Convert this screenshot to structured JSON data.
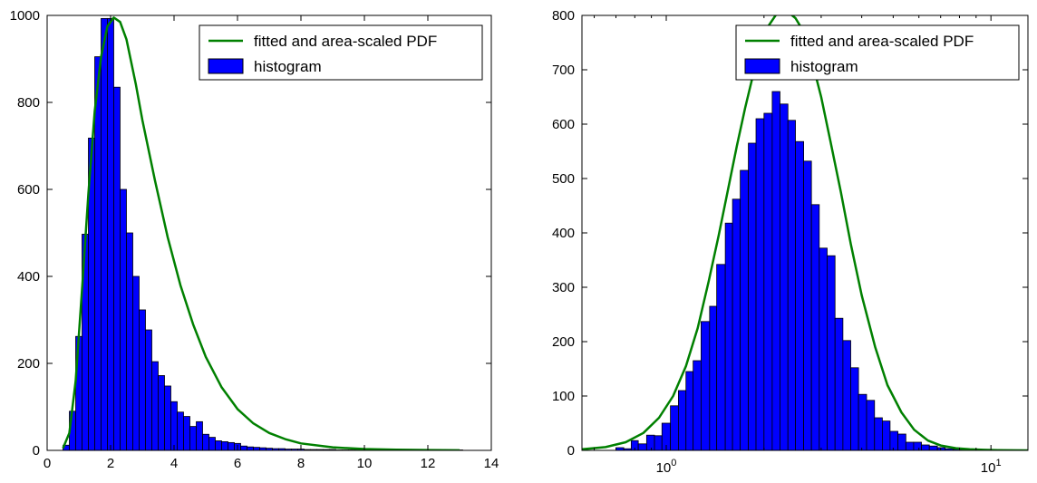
{
  "chart_data": [
    {
      "type": "bar",
      "subtype": "histogram-with-fitted-curve",
      "xscale": "linear",
      "xlim": [
        0,
        14
      ],
      "ylim": [
        0,
        1000
      ],
      "xticks": [
        0,
        2,
        4,
        6,
        8,
        10,
        12,
        14
      ],
      "yticks": [
        0,
        200,
        400,
        600,
        800,
        1000
      ],
      "xtick_labels": [
        "0",
        "2",
        "4",
        "6",
        "8",
        "10",
        "12",
        "14"
      ],
      "ytick_labels": [
        "0",
        "200",
        "400",
        "600",
        "800",
        "1000"
      ],
      "legend_position": "top-right",
      "legend": [
        {
          "label": "fitted and area-scaled PDF",
          "kind": "line",
          "color": "#008000"
        },
        {
          "label": "histogram",
          "kind": "patch",
          "color": "#0000ff"
        }
      ],
      "histogram": {
        "color": "#0000ff",
        "edgecolor": "#000000",
        "bin_start": 0.5,
        "bin_width": 0.2,
        "counts": [
          12,
          90,
          262,
          497,
          718,
          905,
          993,
          993,
          835,
          600,
          500,
          400,
          323,
          277,
          204,
          172,
          148,
          112,
          88,
          78,
          55,
          66,
          37,
          30,
          22,
          20,
          18,
          16,
          10,
          8,
          7,
          6,
          5,
          4,
          4,
          3,
          3,
          3,
          2,
          2,
          2,
          2,
          2,
          1,
          1,
          1,
          1,
          1,
          1,
          1,
          1,
          1,
          1,
          1,
          1,
          1,
          1,
          1,
          1,
          1,
          1,
          1,
          1
        ]
      },
      "curve": {
        "color": "#008000",
        "x": [
          0.5,
          0.7,
          0.9,
          1.1,
          1.3,
          1.5,
          1.7,
          1.9,
          2.1,
          2.3,
          2.5,
          2.8,
          3.0,
          3.4,
          3.8,
          4.2,
          4.6,
          5.0,
          5.5,
          6.0,
          6.5,
          7.0,
          7.5,
          8.0,
          9.0,
          10.0,
          11.0,
          12.0,
          13.0
        ],
        "y": [
          5,
          40,
          160,
          370,
          590,
          780,
          905,
          975,
          995,
          985,
          945,
          840,
          760,
          620,
          490,
          380,
          290,
          215,
          145,
          95,
          62,
          40,
          26,
          16,
          7,
          3,
          1.5,
          0.7,
          0.3
        ]
      }
    },
    {
      "type": "bar",
      "subtype": "histogram-with-fitted-curve",
      "xscale": "log",
      "xlim": [
        0.55,
        13.0
      ],
      "ylim": [
        0,
        800
      ],
      "xticks": [
        1,
        10
      ],
      "xtick_labels": [
        {
          "base": "10",
          "exp": "0"
        },
        {
          "base": "10",
          "exp": "1"
        }
      ],
      "yticks": [
        0,
        100,
        200,
        300,
        400,
        500,
        600,
        700,
        800
      ],
      "ytick_labels": [
        "0",
        "100",
        "200",
        "300",
        "400",
        "500",
        "600",
        "700",
        "800"
      ],
      "legend_position": "top-right",
      "legend": [
        {
          "label": "fitted and area-scaled PDF",
          "kind": "line",
          "color": "#008000"
        },
        {
          "label": "histogram",
          "kind": "patch",
          "color": "#0000ff"
        }
      ],
      "histogram": {
        "color": "#0000ff",
        "edgecolor": "#000000",
        "bin_edges": [
          0.7,
          0.74,
          0.78,
          0.82,
          0.87,
          0.92,
          0.97,
          1.03,
          1.09,
          1.15,
          1.21,
          1.28,
          1.36,
          1.43,
          1.52,
          1.6,
          1.69,
          1.79,
          1.89,
          2.0,
          2.12,
          2.24,
          2.37,
          2.5,
          2.65,
          2.8,
          2.96,
          3.13,
          3.31,
          3.5,
          3.7,
          3.91,
          4.14,
          4.38,
          4.63,
          4.89,
          5.17,
          5.47,
          5.78,
          6.11,
          6.46,
          6.84,
          7.23,
          7.64,
          8.08,
          8.55,
          9.04,
          9.56,
          10.1,
          10.7,
          11.3,
          11.9,
          12.6
        ],
        "counts": [
          5,
          3,
          18,
          12,
          28,
          27,
          50,
          82,
          110,
          145,
          165,
          237,
          265,
          342,
          418,
          462,
          515,
          565,
          610,
          620,
          660,
          637,
          607,
          568,
          532,
          452,
          372,
          358,
          243,
          202,
          152,
          103,
          92,
          60,
          54,
          35,
          30,
          15,
          15,
          10,
          8,
          5,
          3,
          2,
          2,
          1,
          1,
          1,
          0,
          0,
          0,
          0
        ]
      },
      "curve": {
        "color": "#008000",
        "x": [
          0.55,
          0.65,
          0.75,
          0.85,
          0.95,
          1.05,
          1.15,
          1.25,
          1.35,
          1.45,
          1.55,
          1.65,
          1.75,
          1.85,
          1.95,
          2.05,
          2.2,
          2.35,
          2.5,
          2.65,
          2.8,
          3.0,
          3.2,
          3.45,
          3.7,
          4.0,
          4.4,
          4.8,
          5.3,
          5.8,
          6.4,
          7.0,
          7.8,
          8.6,
          9.5,
          10.5,
          11.6,
          13.0
        ],
        "y": [
          2,
          6,
          15,
          32,
          60,
          100,
          155,
          225,
          310,
          395,
          480,
          560,
          630,
          690,
          740,
          778,
          805,
          808,
          795,
          770,
          720,
          650,
          570,
          475,
          380,
          285,
          190,
          120,
          70,
          38,
          18,
          9,
          4,
          2,
          1,
          0.5,
          0.2,
          0.1
        ]
      }
    }
  ]
}
